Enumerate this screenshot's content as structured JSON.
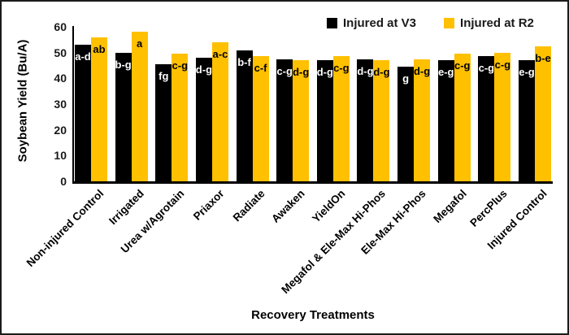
{
  "chart_data": {
    "type": "bar",
    "title": "",
    "xlabel": "Recovery Treatments",
    "ylabel": "Soybean Yield (Bu/A)",
    "ylim": [
      0,
      60
    ],
    "yticks": [
      0,
      10,
      20,
      30,
      40,
      50,
      60
    ],
    "grid": false,
    "legend_position": "top-center",
    "categories": [
      "Non-injured Control",
      "Irrigated",
      "Urea w/Agrotain",
      "Priaxor",
      "Radiate",
      "Awaken",
      "YieldOn",
      "Megafol & Ele-Max Hi-Phos",
      "Ele-Max Hi-Phos",
      "Megafol",
      "PercPlus",
      "Injured Control"
    ],
    "series": [
      {
        "name": "Injured at V3",
        "color": "#000000",
        "label_color": "#FFFFFF",
        "values": [
          53,
          50,
          45.5,
          48,
          51,
          47.5,
          47,
          47.5,
          44.5,
          47,
          48.5,
          47
        ],
        "significance_letters": [
          "a-d",
          "b-g",
          "fg",
          "d-g",
          "b-f",
          "c-g",
          "d-g",
          "d-g",
          "g",
          "e-g",
          "c-g",
          "e-g"
        ]
      },
      {
        "name": "Injured at R2",
        "color": "#FFC000",
        "label_color": "#000000",
        "values": [
          56,
          58,
          49.5,
          54,
          48.5,
          47,
          48.5,
          47,
          47.5,
          49.5,
          50,
          52.5
        ],
        "significance_letters": [
          "ab",
          "a",
          "c-g",
          "a-c",
          "c-f",
          "d-g",
          "c-g",
          "d-g",
          "d-g",
          "c-g",
          "c-g",
          "b-e"
        ]
      }
    ]
  }
}
